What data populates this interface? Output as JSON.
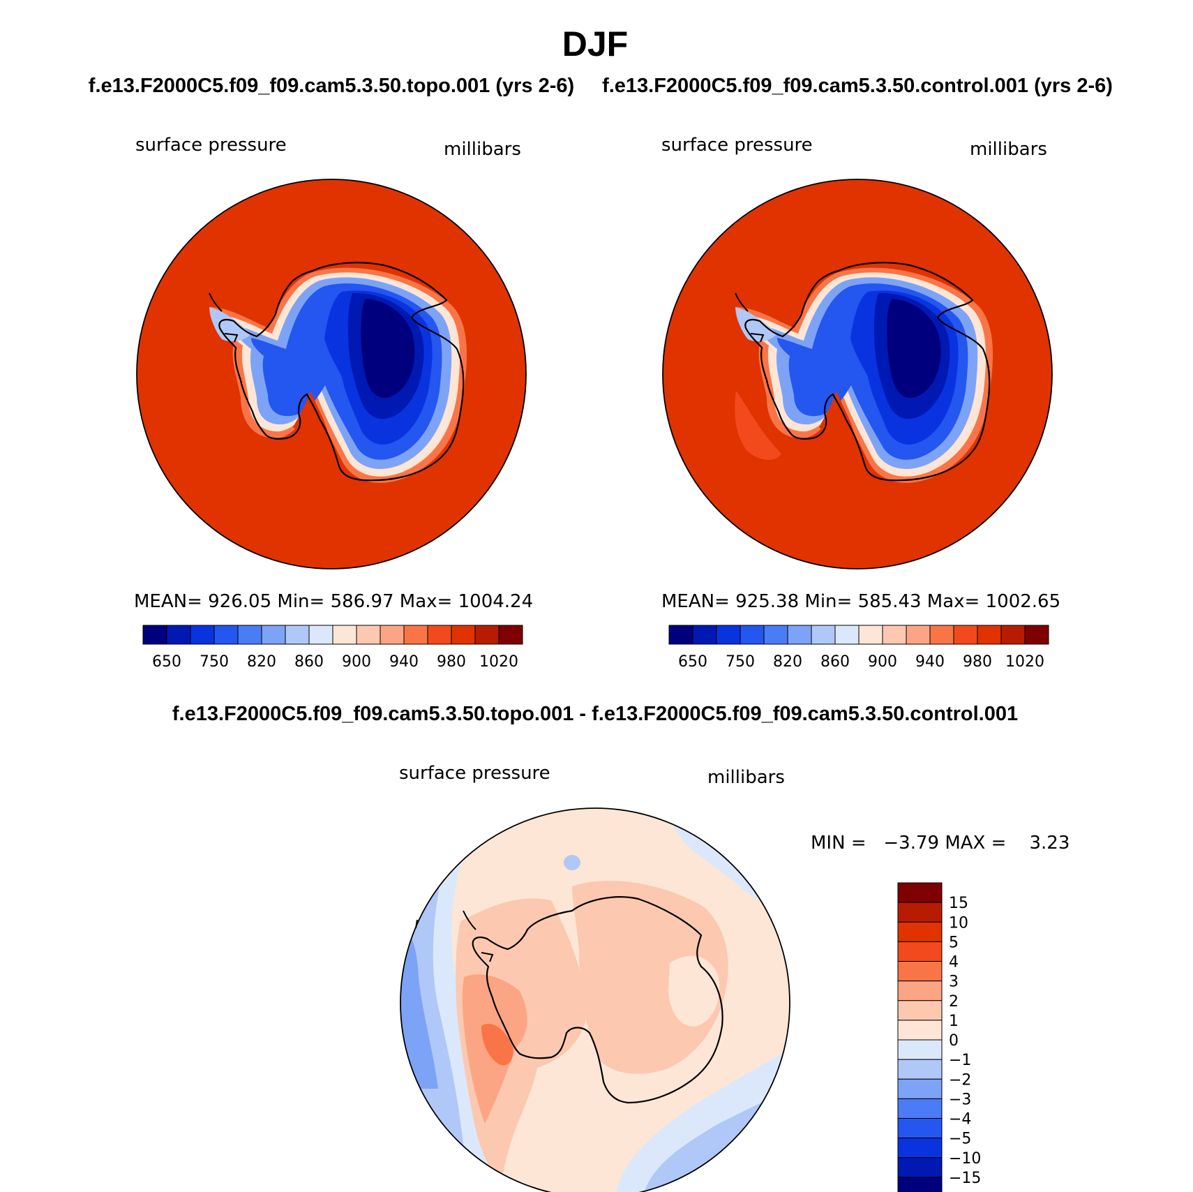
{
  "figure": {
    "title": "DJF",
    "top_left_title": "f.e13.F2000C5.f09_f09.cam5.3.50.topo.001 (yrs 2-6)",
    "top_right_title": "f.e13.F2000C5.f09_f09.cam5.3.50.control.001 (yrs 2-6)",
    "bottom_title": "f.e13.F2000C5.f09_f09.cam5.3.50.topo.001 - f.e13.F2000C5.f09_f09.cam5.3.50.control.001"
  },
  "chart_data": [
    {
      "type": "heatmap",
      "panel": "topo",
      "left_label": "surface pressure",
      "right_label": "millibars",
      "stats": "MEAN= 926.05   Min= 586.97   Max= 1004.24",
      "mean": 926.05,
      "min": 586.97,
      "max": 1004.24,
      "projection": "south polar stereographic",
      "colorbar": {
        "orientation": "horizontal",
        "colors": [
          "#00007f",
          "#0019b3",
          "#0a33e0",
          "#2456f0",
          "#4a7cf5",
          "#7da3f7",
          "#b0c8f7",
          "#dbe8fb",
          "#fde6d6",
          "#fcc8b0",
          "#fca584",
          "#f97547",
          "#f24a1c",
          "#e03300",
          "#b81c00",
          "#7f0000"
        ],
        "tick_labels": [
          "650",
          "750",
          "820",
          "860",
          "900",
          "940",
          "980",
          "1020"
        ]
      }
    },
    {
      "type": "heatmap",
      "panel": "control",
      "left_label": "surface pressure",
      "right_label": "millibars",
      "stats": "MEAN= 925.38   Min= 585.43   Max= 1002.65",
      "mean": 925.38,
      "min": 585.43,
      "max": 1002.65,
      "projection": "south polar stereographic",
      "colorbar": {
        "orientation": "horizontal",
        "colors": [
          "#00007f",
          "#0019b3",
          "#0a33e0",
          "#2456f0",
          "#4a7cf5",
          "#7da3f7",
          "#b0c8f7",
          "#dbe8fb",
          "#fde6d6",
          "#fcc8b0",
          "#fca584",
          "#f97547",
          "#f24a1c",
          "#e03300",
          "#b81c00",
          "#7f0000"
        ],
        "tick_labels": [
          "650",
          "750",
          "820",
          "860",
          "900",
          "940",
          "980",
          "1020"
        ]
      }
    },
    {
      "type": "heatmap",
      "panel": "difference",
      "left_label": "surface pressure",
      "right_label": "millibars",
      "stats": "MIN =   −3.79 MAX =    3.23",
      "min": -3.79,
      "max": 3.23,
      "projection": "south polar stereographic",
      "colorbar": {
        "orientation": "vertical",
        "colors": [
          "#00007f",
          "#0019b3",
          "#0a33e0",
          "#2456f0",
          "#4a7cf5",
          "#7da3f7",
          "#b0c8f7",
          "#dbe8fb",
          "#fde6d6",
          "#fcc8b0",
          "#fca584",
          "#f97547",
          "#f24a1c",
          "#e03300",
          "#b81c00",
          "#7f0000"
        ],
        "tick_labels": [
          "15",
          "10",
          "5",
          "4",
          "3",
          "2",
          "1",
          "0",
          "−1",
          "−2",
          "−3",
          "−4",
          "−5",
          "−10",
          "−15"
        ]
      }
    }
  ]
}
